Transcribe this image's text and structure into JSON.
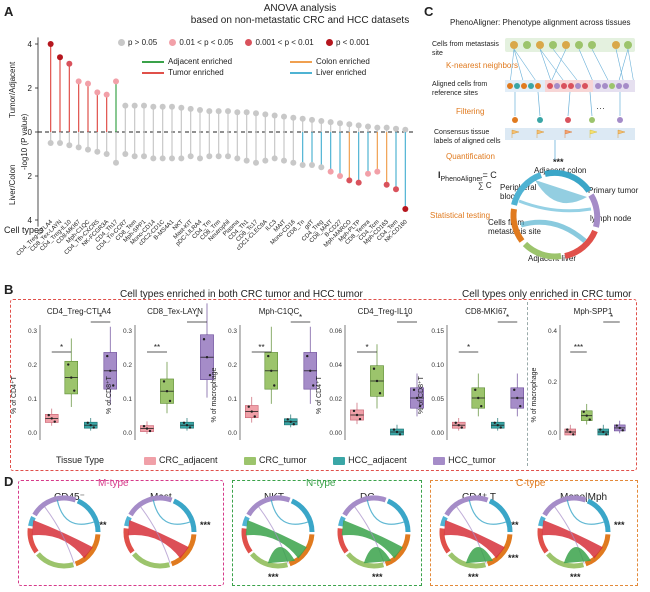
{
  "panel_a": {
    "letter": "A",
    "title": "ANOVA analysis",
    "subtitle": "based on non-metastatic CRC and HCC datasets",
    "p_legend": [
      {
        "label": "p > 0.05",
        "color": "#c8c8c8"
      },
      {
        "label": "0.01 < p < 0.05",
        "color": "#f2a0a8"
      },
      {
        "label": "0.001 < p < 0.01",
        "color": "#d9525c"
      },
      {
        "label": "p < 0.001",
        "color": "#b5161e"
      }
    ],
    "line_legend": [
      {
        "label": "Adjacent enriched",
        "color": "#3aa24a"
      },
      {
        "label": "Tumor enriched",
        "color": "#e0504a"
      },
      {
        "label": "Colon enriched",
        "color": "#f0a050"
      },
      {
        "label": "Liver enriched",
        "color": "#4fb3d3"
      }
    ],
    "y_label_top": "Tumor/Adjacent",
    "y_label_mid": "-log10 (P value)",
    "y_label_bottom": "Liver/Colon",
    "y_ticks": [
      "4",
      "2",
      "0",
      "2",
      "4"
    ],
    "cell_types_label": "Cell types"
  },
  "chart_data": [
    {
      "type": "scatter",
      "title": "ANOVA analysis based on non-metastatic CRC and HCC datasets",
      "ylabel": "-log10 (P value)",
      "ylim": [
        -4.5,
        4.5
      ],
      "categories": [
        "CD4_Treg-CTLA4",
        "CD8_Tex-LAYN",
        "CD4_Treg-IL10",
        "CD8-MKI67",
        "Mph-C1QC",
        "CD4_Tfh-CXCR5",
        "NK-FCGR3A",
        "CD4_Th17",
        "CD4_Tn-CCR7",
        "CD8_Tem",
        "Mph-SPP1",
        "Mono-CD14",
        "cDC2-CD1C",
        "B-MS4A1",
        "NKT",
        "Mast-KIT",
        "pDC-LILRA4",
        "CD4_Tm",
        "CD8_Trm",
        "Neutrophil",
        "Plasma",
        "CD4_Th1",
        "CD8_Tc17",
        "cDC1-CLEC9A",
        "ILC3",
        "MAIT",
        "Mono-CD16",
        "CD8_Tn",
        "gdT",
        "CD4_Treg",
        "CD8_MAIT",
        "B-CD27",
        "Mph-MARCO",
        "Mph-PLTP",
        "CD8_Temra",
        "CD4_Tcm",
        "Mph-CD163",
        "CD4_Tem",
        "NK-CD160"
      ],
      "series": [
        {
          "values": [
            4.0,
            3.4,
            3.1,
            2.3,
            2.2,
            1.8,
            1.7,
            2.3,
            1.2,
            1.2,
            1.2,
            1.15,
            1.15,
            1.15,
            1.1,
            1.05,
            1.0,
            0.95,
            0.95,
            0.95,
            0.9,
            0.9,
            0.85,
            0.8,
            0.75,
            0.7,
            0.65,
            0.6,
            0.55,
            0.5,
            0.45,
            0.4,
            0.35,
            0.3,
            0.25,
            0.2,
            0.2,
            0.15,
            0.1
          ]
        },
        {
          "values": [
            -0.5,
            -0.5,
            -0.6,
            -0.7,
            -0.8,
            -0.9,
            -1.0,
            -1.4,
            -1.0,
            -1.1,
            -1.1,
            -1.2,
            -1.2,
            -1.2,
            -1.2,
            -1.1,
            -1.2,
            -1.1,
            -1.1,
            -1.1,
            -1.2,
            -1.3,
            -1.4,
            -1.3,
            -1.2,
            -1.3,
            -1.4,
            -1.5,
            -1.5,
            -1.6,
            -1.8,
            -2.0,
            -2.2,
            -2.3,
            -1.9,
            -1.8,
            -2.4,
            -2.6,
            -3.5
          ]
        }
      ]
    },
    {
      "type": "bar",
      "title": "CD4_Treg-CTLA4",
      "ylabel": "% of CD4+T",
      "categories": [
        "CRC_adjacent",
        "CRC_tumor",
        "HCC_adjacent",
        "HCC_tumor"
      ],
      "values": [
        0.04,
        0.16,
        0.02,
        0.18
      ],
      "ylim": [
        0,
        0.3
      ]
    },
    {
      "type": "bar",
      "title": "CD8_Tex-LAYN",
      "ylabel": "% of CD8+T",
      "categories": [
        "CRC_adjacent",
        "CRC_tumor",
        "HCC_adjacent",
        "HCC_tumor"
      ],
      "values": [
        0.01,
        0.12,
        0.02,
        0.22
      ],
      "ylim": [
        0,
        0.3
      ]
    },
    {
      "type": "bar",
      "title": "Mph-C1QC",
      "ylabel": "% of macrophage",
      "categories": [
        "CRC_adjacent",
        "CRC_tumor",
        "HCC_adjacent",
        "HCC_tumor"
      ],
      "values": [
        0.06,
        0.18,
        0.03,
        0.18
      ],
      "ylim": [
        0,
        0.3
      ]
    },
    {
      "type": "bar",
      "title": "CD4_Treg-IL10",
      "ylabel": "% of CD4+T",
      "categories": [
        "CRC_adjacent",
        "CRC_tumor",
        "HCC_adjacent",
        "HCC_tumor"
      ],
      "values": [
        0.01,
        0.03,
        0.0,
        0.02
      ],
      "ylim": [
        0,
        0.06
      ]
    },
    {
      "type": "bar",
      "title": "CD8-MKI67",
      "ylabel": "% of CD8+T",
      "categories": [
        "CRC_adjacent",
        "CRC_tumor",
        "HCC_adjacent",
        "HCC_tumor"
      ],
      "values": [
        0.01,
        0.05,
        0.01,
        0.05
      ],
      "ylim": [
        0,
        0.15
      ]
    },
    {
      "type": "bar",
      "title": "Mph-SPP1",
      "ylabel": "% of macrophage",
      "categories": [
        "CRC_adjacent",
        "CRC_tumor",
        "HCC_adjacent",
        "HCC_tumor"
      ],
      "values": [
        0.0,
        0.08,
        0.0,
        0.02
      ],
      "ylim": [
        0,
        0.5
      ]
    }
  ],
  "panel_b": {
    "letter": "B",
    "header_both": "Cell types enriched in both CRC tumor and HCC tumor",
    "header_crc": "Cell types only enriched in CRC tumor",
    "tissue_type_label": "Tissue Type",
    "legend": [
      {
        "label": "CRC_adjacent",
        "color": "#f0a0a8"
      },
      {
        "label": "CRC_tumor",
        "color": "#9cc46c"
      },
      {
        "label": "HCC_adjacent",
        "color": "#3aa6a6"
      },
      {
        "label": "HCC_tumor",
        "color": "#a58cc8"
      }
    ],
    "plots": [
      {
        "title": "CD4_Treg-CTLA4",
        "ylabel": "% of CD4⁺T",
        "ticks": [
          "0.3",
          "0.2",
          "0.1",
          "0.0"
        ],
        "sig": [
          "*",
          "*"
        ]
      },
      {
        "title": "CD8_Tex-LAYN",
        "ylabel": "% of CD8⁺T",
        "ticks": [
          "0.3",
          "0.2",
          "0.1",
          "0.0"
        ],
        "sig": [
          "**",
          "*"
        ]
      },
      {
        "title": "Mph-C1QC",
        "ylabel": "% of macrophage",
        "ticks": [
          "0.3",
          "0.2",
          "0.1",
          "0.0"
        ],
        "sig": [
          "**",
          "*"
        ]
      },
      {
        "title": "CD4_Treg-IL10",
        "ylabel": "% of CD4⁺T",
        "ticks": [
          "0.06",
          "0.04",
          "0.02",
          "0.00"
        ],
        "sig": [
          "*",
          "*"
        ]
      },
      {
        "title": "CD8-MKI67",
        "ylabel": "% of CD8⁺T",
        "ticks": [
          "0.15",
          "0.10",
          "0.05",
          "0.00"
        ],
        "sig": [
          "*",
          "*"
        ]
      },
      {
        "title": "Mph-SPP1",
        "ylabel": "% of macrophage",
        "ticks": [
          "0.4",
          "0.2",
          "0.0"
        ],
        "sig": [
          "***",
          "*"
        ]
      }
    ]
  },
  "panel_c": {
    "letter": "C",
    "title": "PhenoAligner: Phenotype alignment across tissues",
    "cells_from_meta": "Cells from metastasis site",
    "knn": "K-nearest neighbors",
    "aligned": "Aligned cells from reference sites",
    "filtering": "Filtering",
    "consensus": "Consensus tissue labels of aligned cells",
    "quantification": "Quantification",
    "formula_left": "I",
    "formula_sub": "PhenoAligner",
    "formula_eq": "= C",
    "formula_den": "∑ C",
    "statistical": "Statistical testing",
    "stars": "***",
    "circle_labels": [
      "Adjacent colon",
      "Primary tumor",
      "lymph node",
      "Adjacent liver",
      "Cells from metastasis site",
      "Peripheral blood"
    ],
    "ellipsis": "···"
  },
  "panel_d": {
    "letter": "D",
    "groups": [
      {
        "label": "M-type",
        "color": "#d63a8a",
        "chords": [
          {
            "name": "CD45⁻",
            "stars_right": "***",
            "stars_bottom": ""
          },
          {
            "name": "Mast",
            "stars_right": "***",
            "stars_bottom": ""
          }
        ]
      },
      {
        "label": "N-type",
        "color": "#3aa24a",
        "chords": [
          {
            "name": "NKT",
            "stars_right": "",
            "stars_bottom": "***"
          },
          {
            "name": "DC",
            "stars_right": "",
            "stars_bottom": "***"
          }
        ]
      },
      {
        "label": "C-type",
        "color": "#e07a1f",
        "chords": [
          {
            "name": "CD4⁺ T",
            "stars_right": "***",
            "stars_bottom": "***"
          },
          {
            "name": "Mono|Mph",
            "stars_right": "***",
            "stars_bottom": "***"
          }
        ]
      }
    ],
    "extra_stars": "***"
  }
}
